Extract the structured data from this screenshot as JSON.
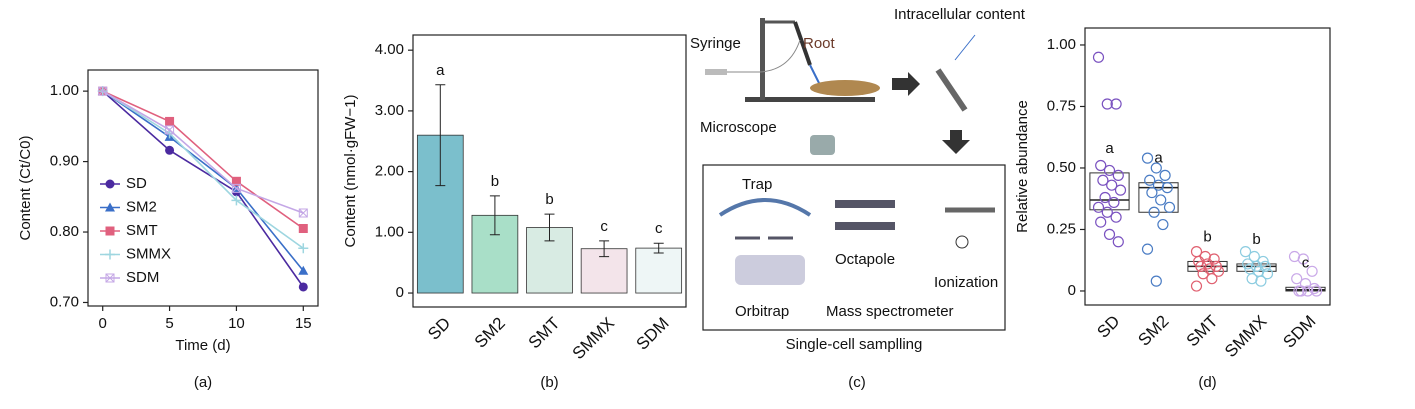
{
  "chart_data": [
    {
      "type": "line",
      "caption": "(a)",
      "xlabel": "Time (d)",
      "ylabel": "Content (Ct/C0)",
      "x": [
        0,
        5,
        10,
        15
      ],
      "xlim": [
        -1.1,
        16.1
      ],
      "xticks": [
        0,
        5,
        10,
        15
      ],
      "ylim": [
        0.695,
        1.03
      ],
      "yticks": [
        {
          "value": 0.7,
          "label": "0.70"
        },
        {
          "value": 0.8,
          "label": "0.80"
        },
        {
          "value": 0.9,
          "label": "0.90"
        },
        {
          "value": 1.0,
          "label": "1.00"
        }
      ],
      "legend": "lower left",
      "series": [
        {
          "name": "SD",
          "color": "#4b2aa0",
          "marker": "circle",
          "values": [
            1.0,
            0.916,
            0.857,
            0.722
          ]
        },
        {
          "name": "SM2",
          "color": "#3a6fc8",
          "marker": "triangle",
          "values": [
            1.0,
            0.935,
            0.862,
            0.745
          ]
        },
        {
          "name": "SMT",
          "color": "#e0607e",
          "marker": "square",
          "values": [
            1.0,
            0.957,
            0.872,
            0.805
          ]
        },
        {
          "name": "SMMX",
          "color": "#9ed6e0",
          "marker": "plus",
          "values": [
            1.0,
            0.94,
            0.845,
            0.777
          ]
        },
        {
          "name": "SDM",
          "color": "#c4a7e6",
          "marker": "boxx",
          "values": [
            1.0,
            0.945,
            0.862,
            0.827
          ]
        }
      ]
    },
    {
      "type": "bar",
      "caption": "(b)",
      "ylabel": "Content (nmol·gFW−1)",
      "categories": [
        "SD",
        "SM2",
        "SMT",
        "SMMX",
        "SDM"
      ],
      "values": [
        2.6,
        1.28,
        1.08,
        0.73,
        0.74
      ],
      "errors": [
        0.83,
        0.32,
        0.22,
        0.13,
        0.08
      ],
      "letters": [
        "a",
        "b",
        "b",
        "c",
        "c"
      ],
      "colors": [
        "#7bbfcc",
        "#a9dfc8",
        "#d8ebe3",
        "#f3e4ea",
        "#eef6f6"
      ],
      "ylim": [
        -0.23,
        4.25
      ],
      "yticks": [
        0,
        {
          "value": 1,
          "label": "1.00"
        },
        {
          "value": 2,
          "label": "2.00"
        },
        {
          "value": 3,
          "label": "3.00"
        },
        {
          "value": 4,
          "label": "4.00"
        }
      ]
    },
    {
      "type": "box",
      "caption": "(d)",
      "ylabel": "Relative abundance",
      "categories": [
        "SD",
        "SM2",
        "SMT",
        "SMMX",
        "SDM"
      ],
      "q1": [
        0.33,
        0.32,
        0.08,
        0.08,
        0.0
      ],
      "median": [
        0.37,
        0.42,
        0.1,
        0.1,
        0.005
      ],
      "q3": [
        0.48,
        0.44,
        0.12,
        0.11,
        0.015
      ],
      "letters": [
        "a",
        "a",
        "b",
        "b",
        "c"
      ],
      "colors": [
        "#7a52c0",
        "#4a7cc4",
        "#e06070",
        "#8ccce0",
        "#c9a8e8"
      ],
      "points": [
        [
          0.95,
          0.76,
          0.76,
          0.51,
          0.49,
          0.47,
          0.45,
          0.43,
          0.41,
          0.38,
          0.36,
          0.34,
          0.32,
          0.3,
          0.28,
          0.23,
          0.2
        ],
        [
          0.54,
          0.5,
          0.47,
          0.45,
          0.43,
          0.42,
          0.4,
          0.37,
          0.34,
          0.32,
          0.27,
          0.17,
          0.04
        ],
        [
          0.16,
          0.14,
          0.13,
          0.12,
          0.11,
          0.1,
          0.1,
          0.09,
          0.08,
          0.07,
          0.05,
          0.02
        ],
        [
          0.16,
          0.14,
          0.12,
          0.11,
          0.1,
          0.1,
          0.09,
          0.08,
          0.07,
          0.05,
          0.04
        ],
        [
          0.14,
          0.13,
          0.08,
          0.05,
          0.03,
          0.01,
          0.0,
          0.0,
          0.0,
          0.0
        ]
      ],
      "ylim": [
        -0.057,
        1.069
      ],
      "yticks": [
        0,
        0.25,
        {
          "value": 0.5,
          "label": "0.50"
        },
        0.75,
        {
          "value": 1,
          "label": "1.00"
        }
      ]
    }
  ],
  "diagram": {
    "caption": "(c)",
    "syringe": "Syringe",
    "root": "Root",
    "content": "Intracellular content",
    "microscope": "Microscope",
    "trap": "Trap",
    "octapole": "Octapole",
    "ionization": "Ionization",
    "orbitrap": "Orbitrap",
    "ms": "Mass spectrometer",
    "sampling": "Single-cell samplling"
  }
}
